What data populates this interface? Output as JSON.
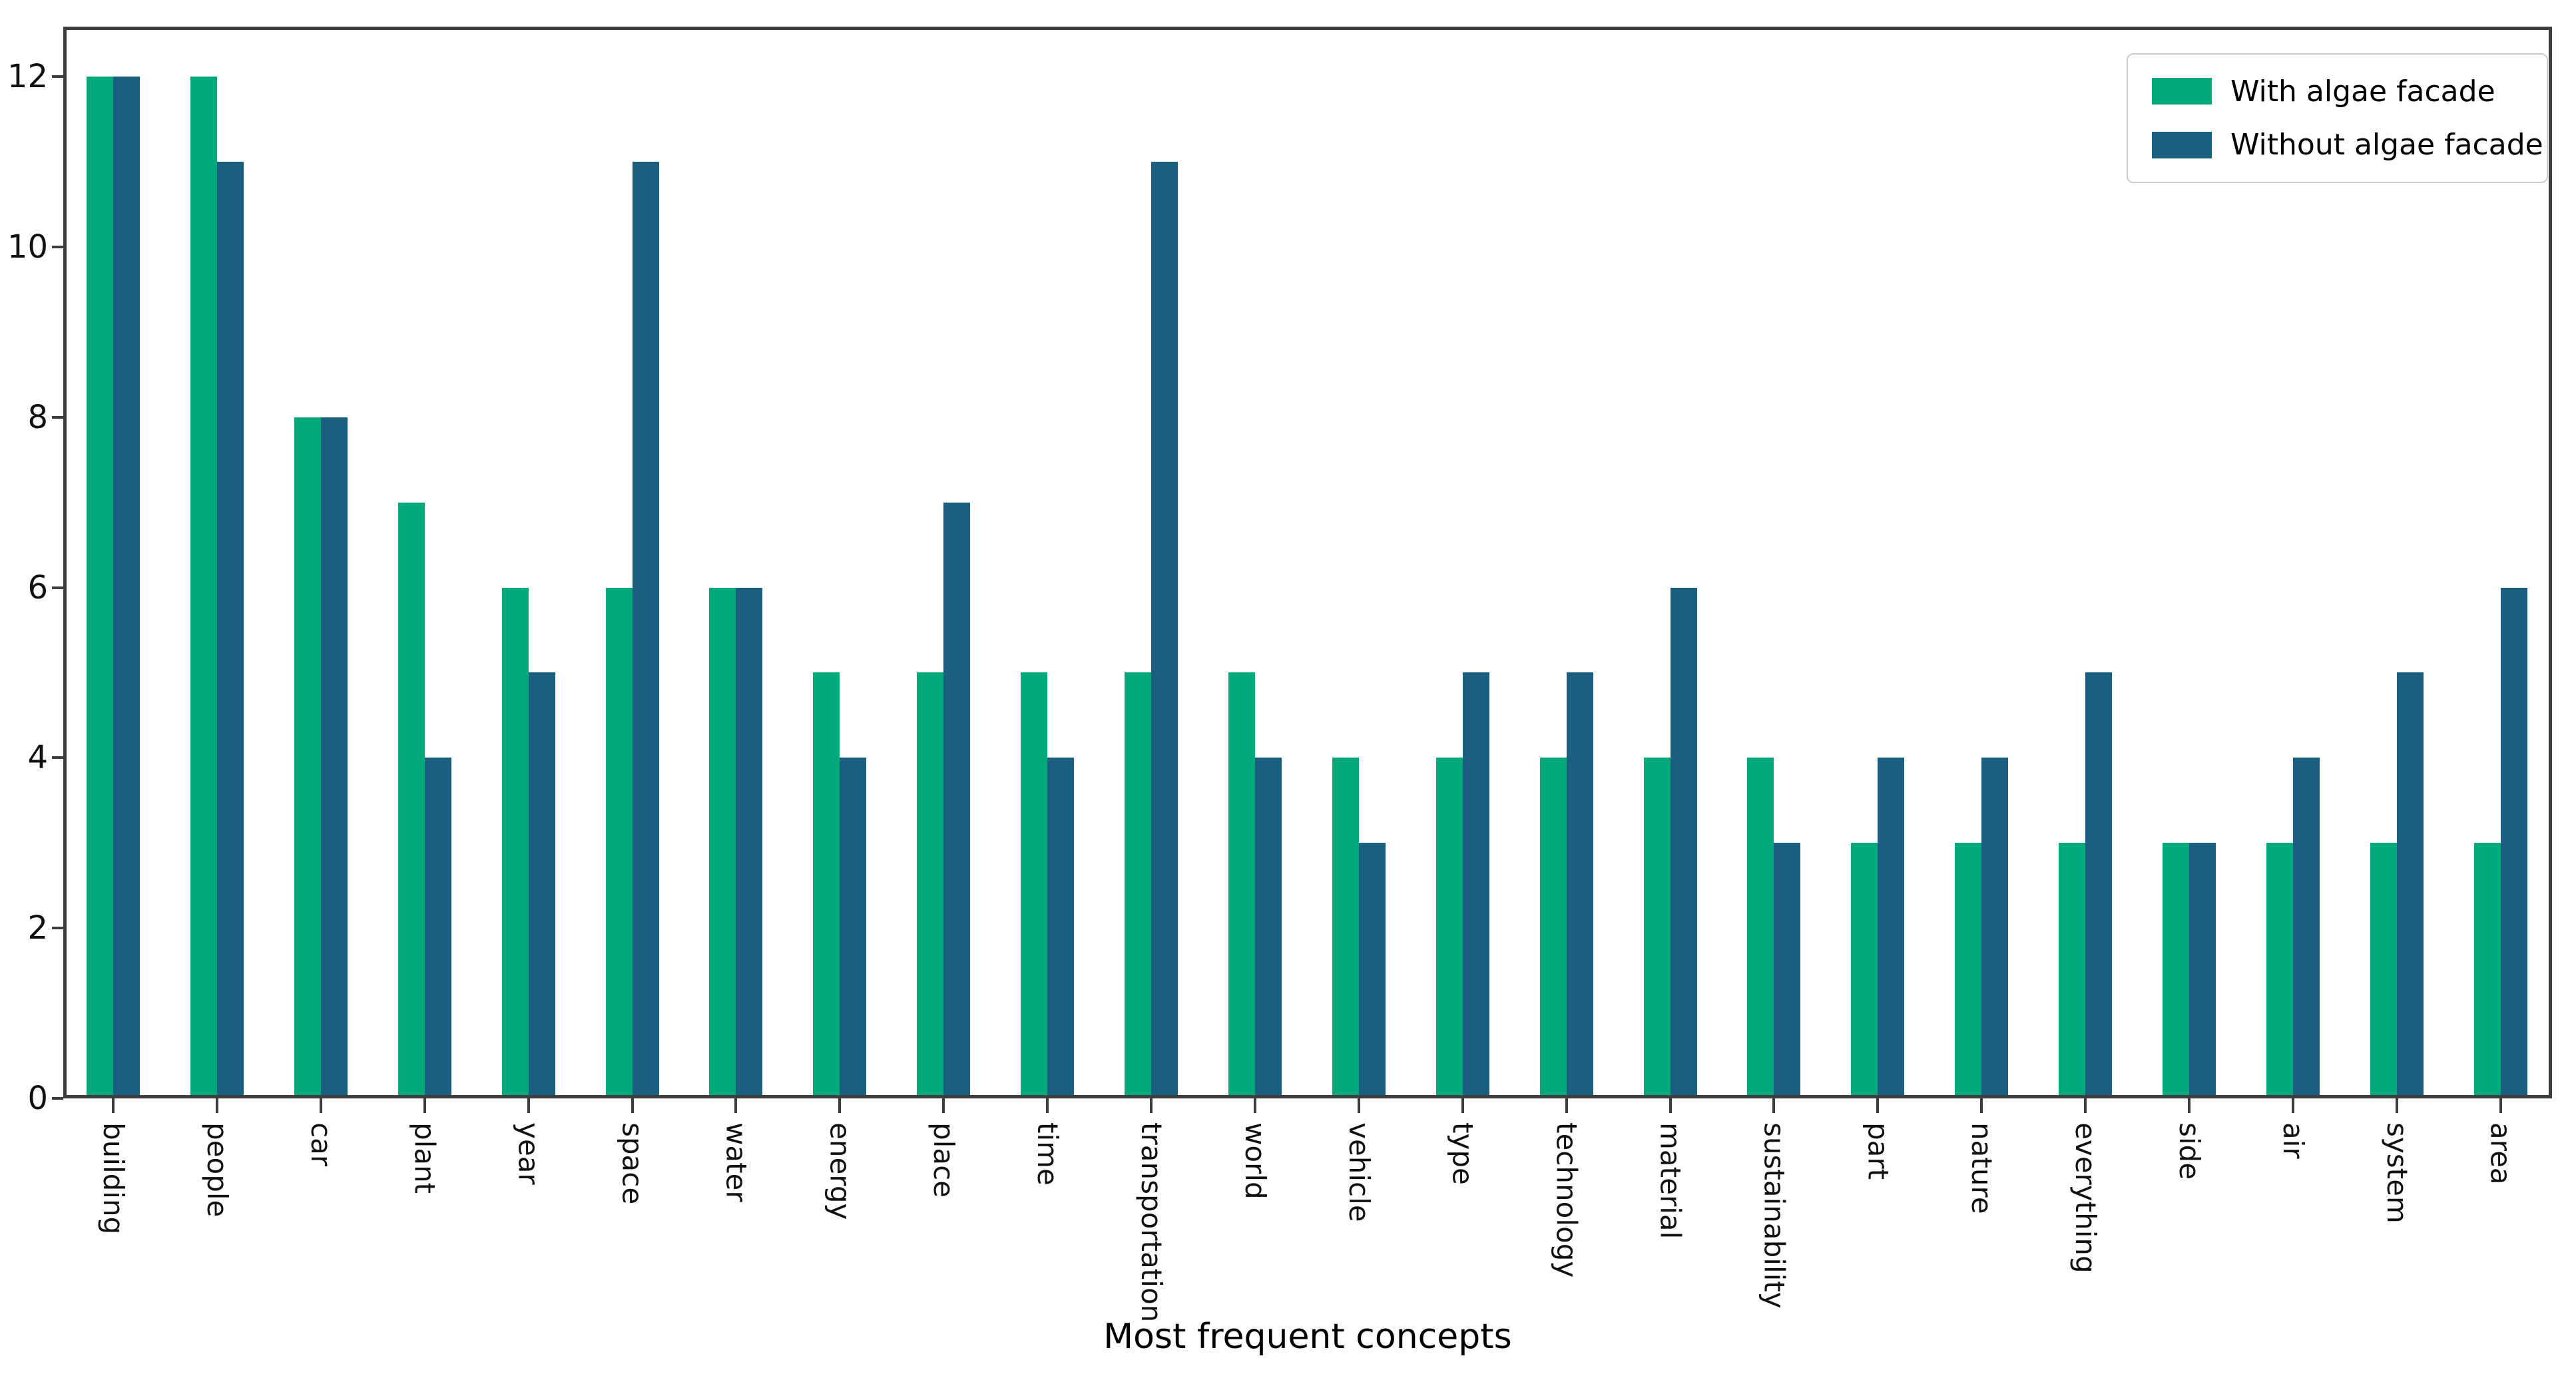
{
  "chart_data": {
    "type": "bar",
    "title": "",
    "xlabel": "Most frequent concepts",
    "ylabel": "",
    "categories": [
      "building",
      "people",
      "car",
      "plant",
      "year",
      "space",
      "water",
      "energy",
      "place",
      "time",
      "transportation",
      "world",
      "vehicle",
      "type",
      "technology",
      "material",
      "sustainability",
      "part",
      "nature",
      "everything",
      "side",
      "air",
      "system",
      "area"
    ],
    "series": [
      {
        "name": "With algae facade",
        "color": "#00a97b",
        "values": [
          12,
          12,
          8,
          7,
          6,
          6,
          6,
          5,
          5,
          5,
          5,
          5,
          4,
          4,
          4,
          4,
          4,
          3,
          3,
          3,
          3,
          3,
          3,
          3
        ]
      },
      {
        "name": "Without algae facade",
        "color": "#1a5f80",
        "values": [
          12,
          11,
          8,
          4,
          5,
          11,
          6,
          4,
          7,
          4,
          11,
          4,
          3,
          5,
          5,
          6,
          3,
          4,
          4,
          5,
          3,
          4,
          5,
          6
        ]
      }
    ],
    "yticks": [
      0,
      2,
      4,
      6,
      8,
      10,
      12
    ],
    "ylim": [
      0,
      12.6
    ],
    "grid": false,
    "legend_position": "upper right"
  },
  "colors": {
    "with_algae": "#00a97b",
    "without_algae": "#1a5f80",
    "axis": "#3d3d3d",
    "tick_text": "#111111",
    "legend_border": "#cccccc"
  }
}
